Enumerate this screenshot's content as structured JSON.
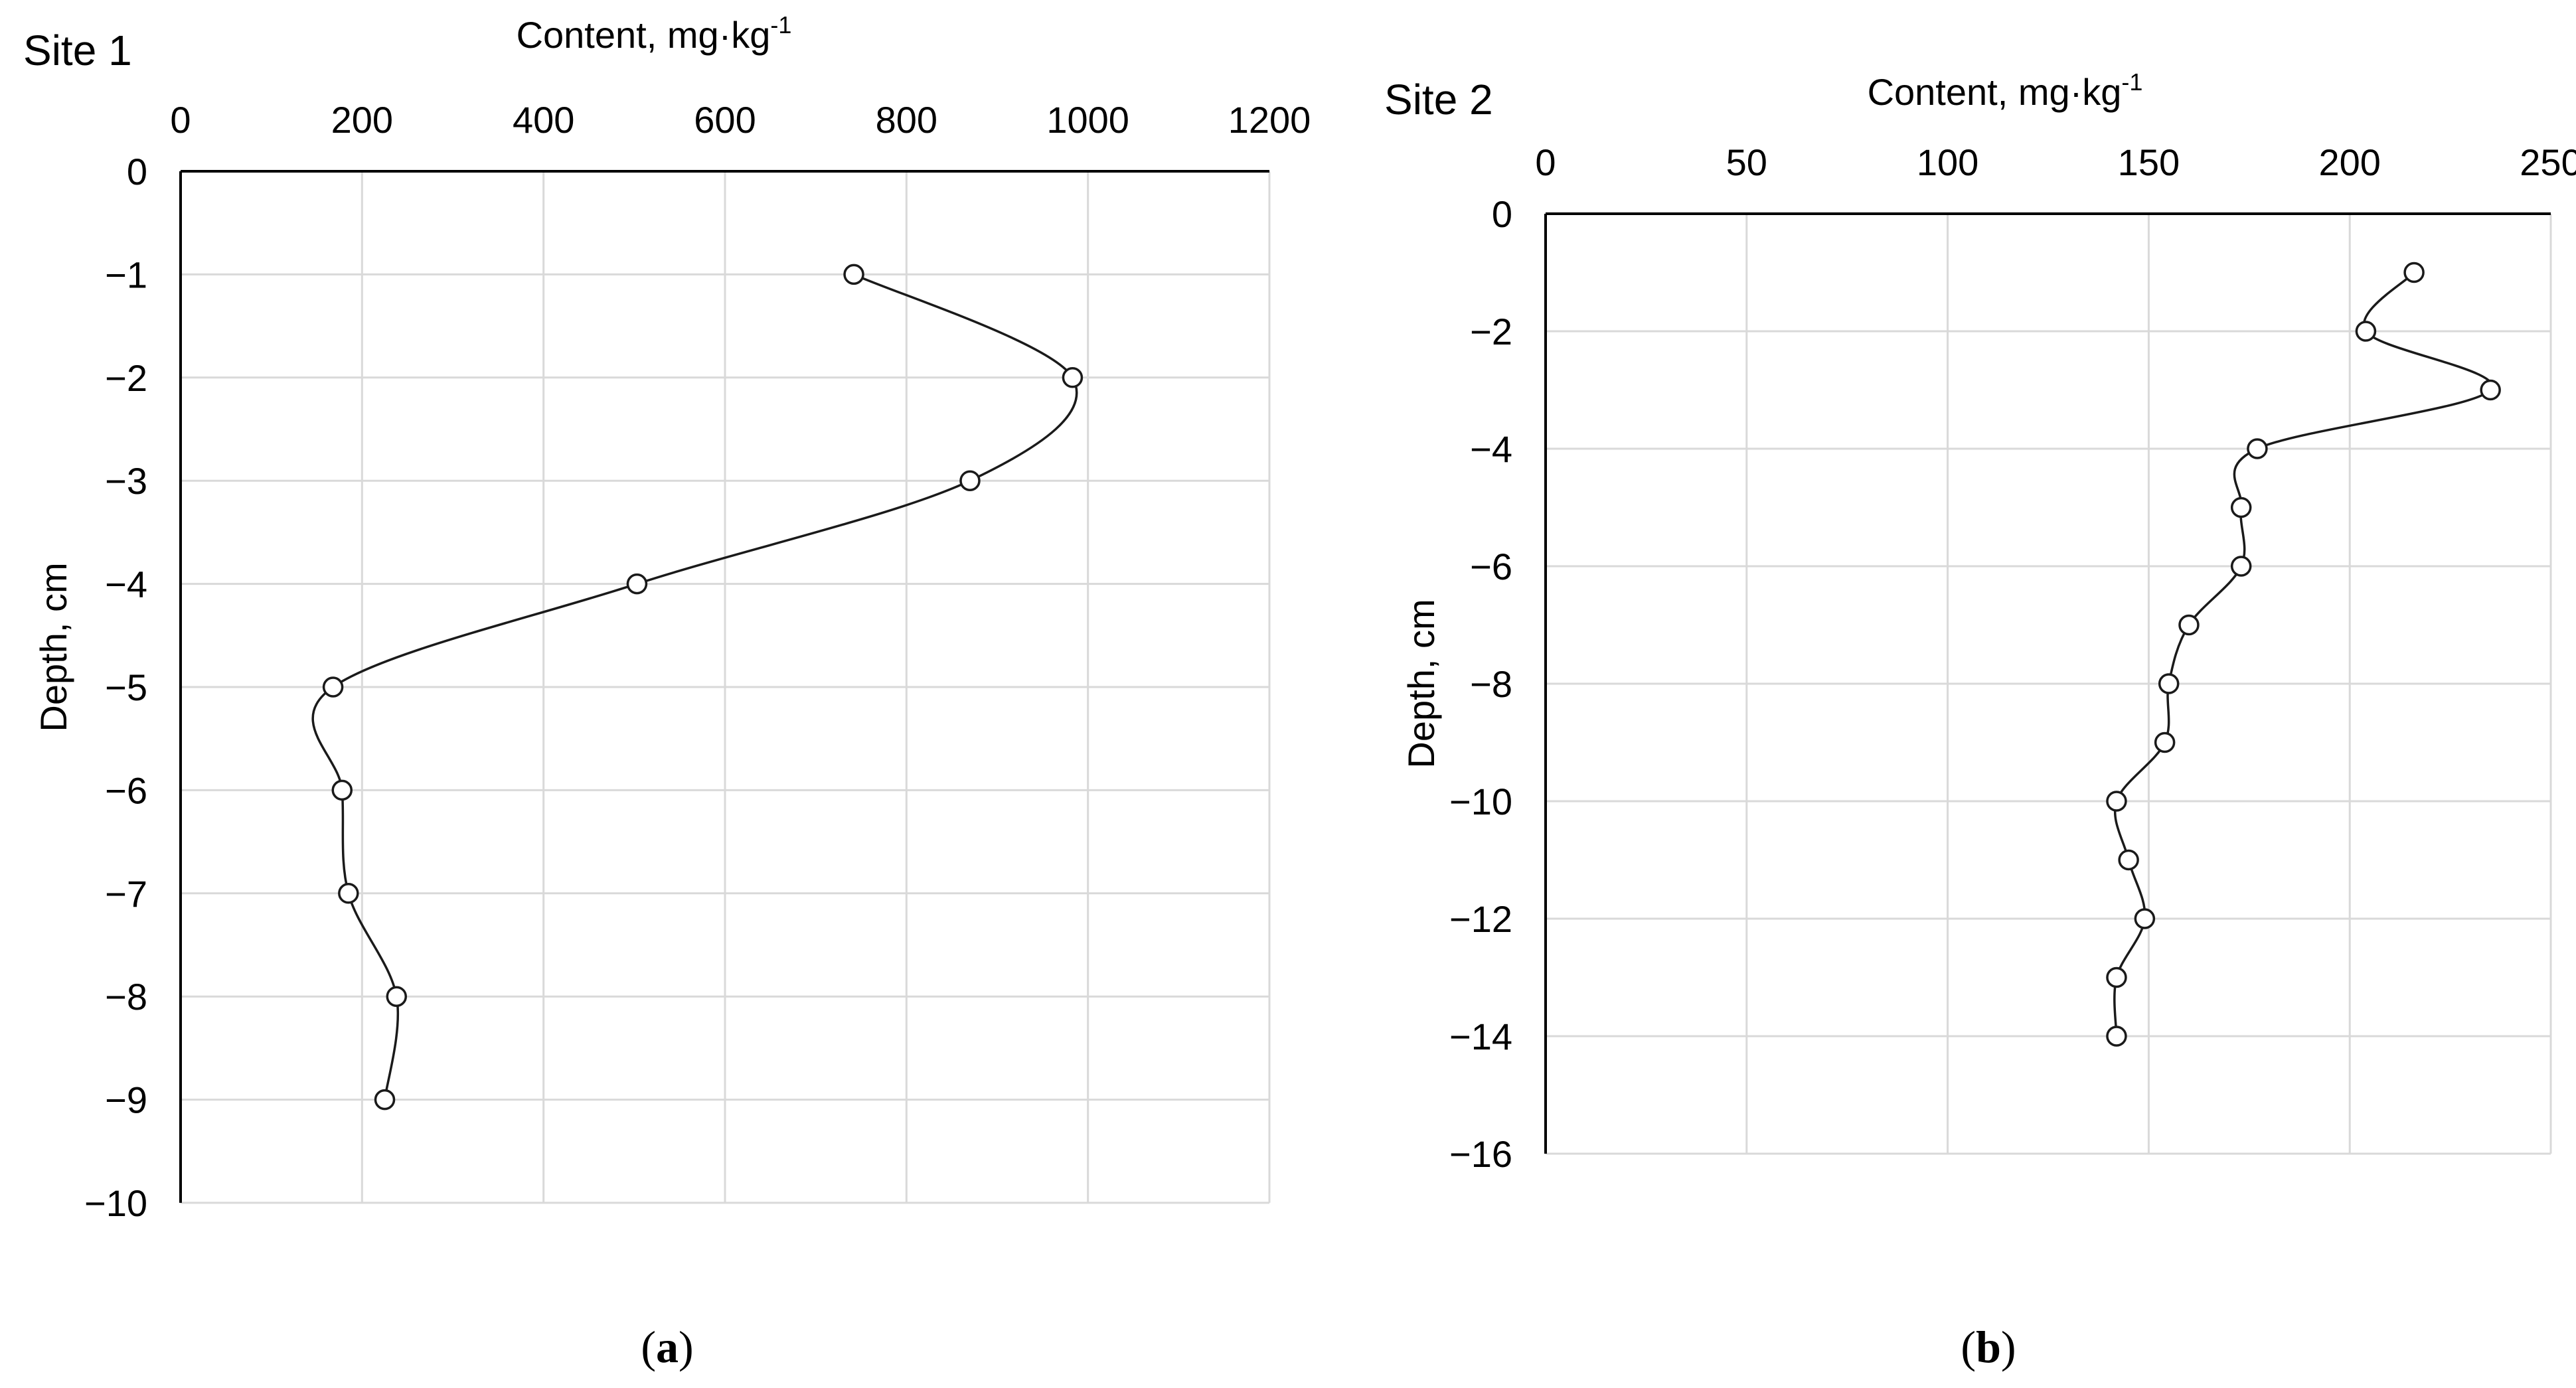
{
  "chart_data": [
    {
      "type": "line",
      "panel_title": "Site 1",
      "xlabel": "Content, mg·kg",
      "xlabel_sup": "-1",
      "ylabel": "Depth, cm",
      "xlim": [
        0,
        1200
      ],
      "ylim": [
        -10,
        0
      ],
      "xticks": [
        "0",
        "200",
        "400",
        "600",
        "800",
        "1000",
        "1200"
      ],
      "yticks": [
        "0",
        "−1",
        "−2",
        "−3",
        "−4",
        "−5",
        "−6",
        "−7",
        "−8",
        "−9",
        "−10"
      ],
      "xtick_values": [
        0,
        200,
        400,
        600,
        800,
        1000,
        1200
      ],
      "ytick_values": [
        0,
        -1,
        -2,
        -3,
        -4,
        -5,
        -6,
        -7,
        -8,
        -9,
        -10
      ],
      "x_axis_position": "top",
      "grid": true,
      "smoothed": true,
      "marker": "open-circle",
      "points": [
        {
          "x": 742,
          "y": -1
        },
        {
          "x": 983,
          "y": -2
        },
        {
          "x": 870,
          "y": -3
        },
        {
          "x": 503,
          "y": -4
        },
        {
          "x": 168,
          "y": -5
        },
        {
          "x": 178,
          "y": -6
        },
        {
          "x": 185,
          "y": -7
        },
        {
          "x": 238,
          "y": -8
        },
        {
          "x": 225,
          "y": -9
        }
      ],
      "caption_open": "(",
      "caption_letter": "a",
      "caption_close": ")"
    },
    {
      "type": "line",
      "panel_title": "Site 2",
      "xlabel": "Content, mg·kg",
      "xlabel_sup": "-1",
      "ylabel": "Depth, cm",
      "xlim": [
        0,
        250
      ],
      "ylim": [
        -16,
        0
      ],
      "xticks": [
        "0",
        "50",
        "100",
        "150",
        "200",
        "250"
      ],
      "yticks": [
        "0",
        "−2",
        "−4",
        "−6",
        "−8",
        "−10",
        "−12",
        "−14",
        "−16"
      ],
      "xtick_values": [
        0,
        50,
        100,
        150,
        200,
        250
      ],
      "ytick_values": [
        0,
        -2,
        -4,
        -6,
        -8,
        -10,
        -12,
        -14,
        -16
      ],
      "x_axis_position": "top",
      "grid": true,
      "smoothed": true,
      "marker": "open-circle",
      "points": [
        {
          "x": 216,
          "y": -1
        },
        {
          "x": 204,
          "y": -2
        },
        {
          "x": 235,
          "y": -3
        },
        {
          "x": 177,
          "y": -4
        },
        {
          "x": 173,
          "y": -5
        },
        {
          "x": 173,
          "y": -6
        },
        {
          "x": 160,
          "y": -7
        },
        {
          "x": 155,
          "y": -8
        },
        {
          "x": 154,
          "y": -9
        },
        {
          "x": 142,
          "y": -10
        },
        {
          "x": 145,
          "y": -11
        },
        {
          "x": 149,
          "y": -12
        },
        {
          "x": 142,
          "y": -13
        },
        {
          "x": 142,
          "y": -14
        }
      ],
      "caption_open": "(",
      "caption_letter": "b",
      "caption_close": ")"
    }
  ]
}
